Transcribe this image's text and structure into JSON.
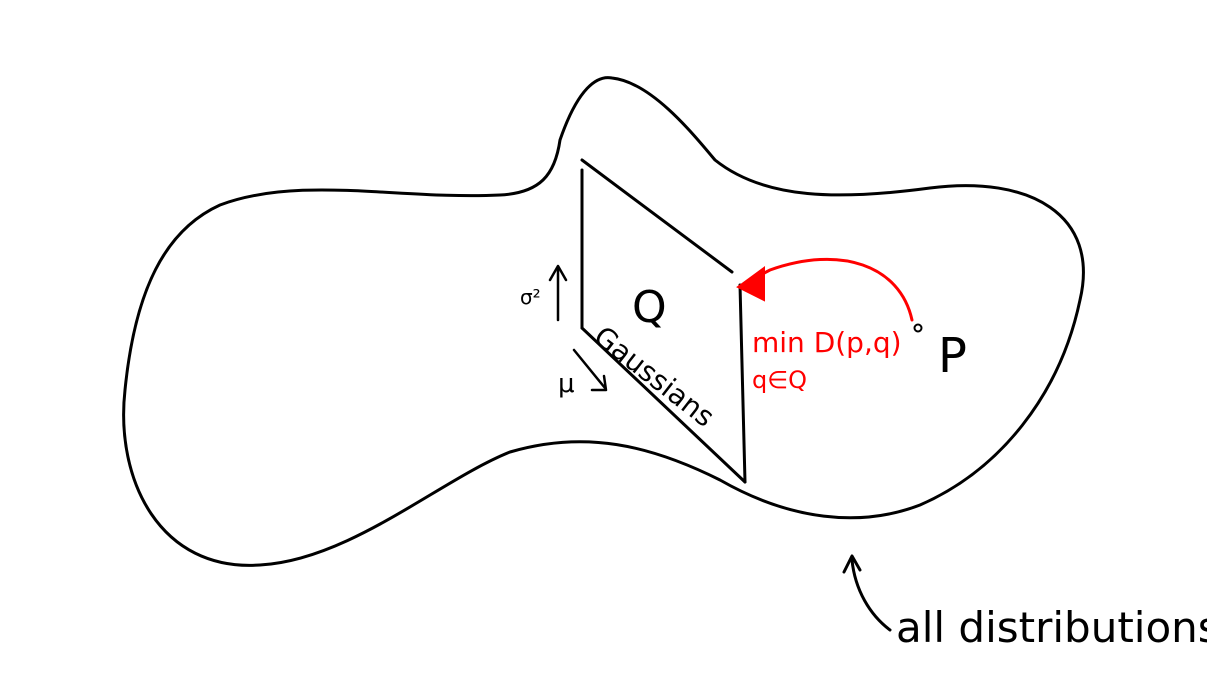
{
  "colors": {
    "ink": "#000000",
    "accent": "#ff0000",
    "background": "#ffffff"
  },
  "labels": {
    "family": "Q",
    "family_name": "Gaussians",
    "variance_axis": "σ²",
    "mean_axis": "μ",
    "target": "P",
    "objective_line1": "min D(p,q)",
    "objective_line2": "q∈Q",
    "outer_set": "all distributions"
  }
}
